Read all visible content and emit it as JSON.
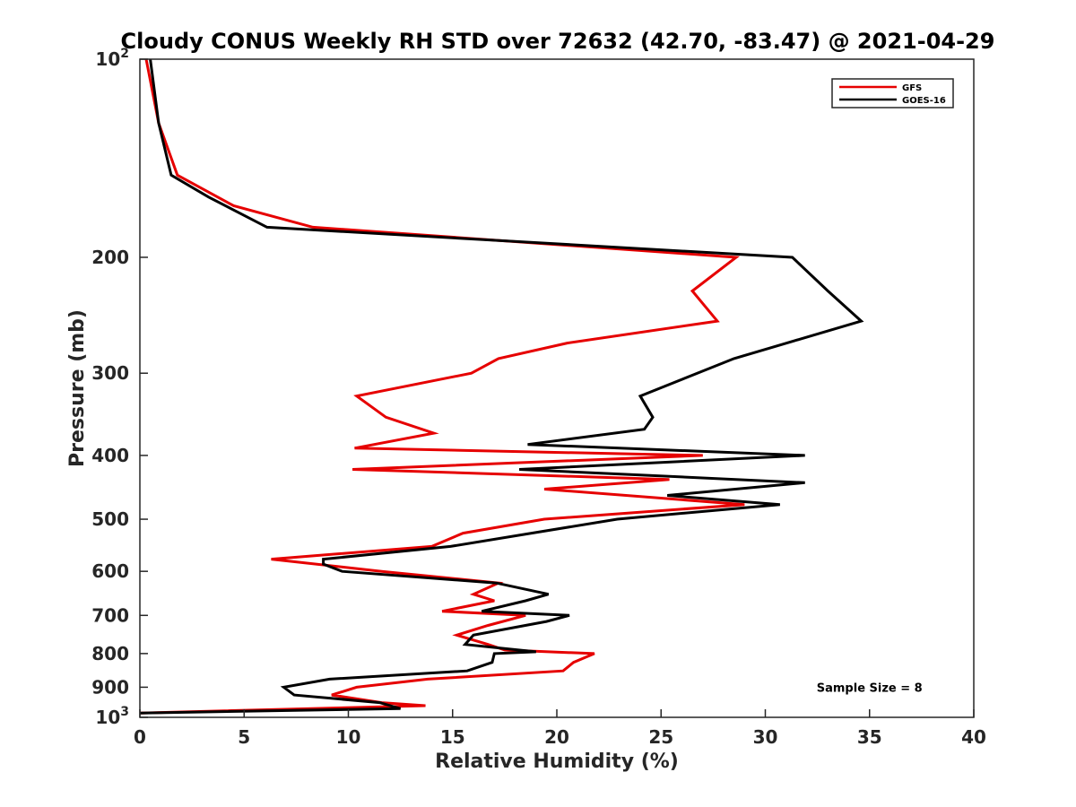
{
  "chart_data": {
    "type": "line",
    "title": "Cloudy CONUS Weekly RH STD over 72632 (42.70, -83.47) @ 2021-04-29",
    "xlabel": "Relative Humidity (%)",
    "ylabel": "Pressure (mb)",
    "xlim": [
      0,
      40
    ],
    "ylim": [
      100,
      1000
    ],
    "y_scale": "log",
    "y_reversed": true,
    "x_ticks": [
      "0",
      "5",
      "10",
      "15",
      "20",
      "25",
      "30",
      "35",
      "40"
    ],
    "y_ticks": [
      {
        "value": 100,
        "label": "10",
        "sup": "2"
      },
      {
        "value": 200,
        "label": "200"
      },
      {
        "value": 300,
        "label": "300"
      },
      {
        "value": 400,
        "label": "400"
      },
      {
        "value": 500,
        "label": "500"
      },
      {
        "value": 600,
        "label": "600"
      },
      {
        "value": 700,
        "label": "700"
      },
      {
        "value": 800,
        "label": "800"
      },
      {
        "value": 900,
        "label": "900"
      },
      {
        "value": 1000,
        "label": "10",
        "sup": "3"
      }
    ],
    "legend_position": "top-right",
    "annotation": "Sample Size = 8",
    "series": [
      {
        "name": "GFS",
        "color": "#e60000",
        "points": [
          [
            0.3,
            100
          ],
          [
            0.9,
            125
          ],
          [
            1.8,
            150
          ],
          [
            4.5,
            167
          ],
          [
            8.3,
            180
          ],
          [
            28.6,
            200
          ],
          [
            26.5,
            225
          ],
          [
            27.7,
            250
          ],
          [
            20.5,
            270
          ],
          [
            17.2,
            285
          ],
          [
            15.9,
            300
          ],
          [
            10.4,
            325
          ],
          [
            11.8,
            350
          ],
          [
            14.1,
            370
          ],
          [
            10.3,
            390
          ],
          [
            27.0,
            400
          ],
          [
            10.2,
            420
          ],
          [
            25.4,
            435
          ],
          [
            19.4,
            450
          ],
          [
            29.0,
            475
          ],
          [
            19.4,
            500
          ],
          [
            15.5,
            525
          ],
          [
            14.0,
            550
          ],
          [
            6.3,
            575
          ],
          [
            11.6,
            600
          ],
          [
            17.2,
            625
          ],
          [
            16.0,
            650
          ],
          [
            17.0,
            665
          ],
          [
            14.5,
            690
          ],
          [
            18.5,
            700
          ],
          [
            16.7,
            725
          ],
          [
            15.2,
            750
          ],
          [
            16.7,
            775
          ],
          [
            17.5,
            790
          ],
          [
            21.8,
            800
          ],
          [
            20.8,
            825
          ],
          [
            20.3,
            850
          ],
          [
            13.8,
            875
          ],
          [
            10.4,
            900
          ],
          [
            9.2,
            925
          ],
          [
            11.6,
            950
          ],
          [
            13.7,
            960
          ],
          [
            0.0,
            985
          ]
        ]
      },
      {
        "name": "GOES-16",
        "color": "#000000",
        "points": [
          [
            0.5,
            100
          ],
          [
            0.9,
            125
          ],
          [
            1.5,
            150
          ],
          [
            3.3,
            162
          ],
          [
            6.1,
            180
          ],
          [
            31.3,
            200
          ],
          [
            33.0,
            225
          ],
          [
            34.6,
            250
          ],
          [
            28.5,
            285
          ],
          [
            24.0,
            325
          ],
          [
            24.6,
            350
          ],
          [
            24.2,
            365
          ],
          [
            18.6,
            385
          ],
          [
            31.9,
            400
          ],
          [
            18.2,
            420
          ],
          [
            31.9,
            440
          ],
          [
            25.3,
            460
          ],
          [
            30.7,
            475
          ],
          [
            22.9,
            500
          ],
          [
            14.9,
            550
          ],
          [
            8.8,
            575
          ],
          [
            8.8,
            585
          ],
          [
            9.7,
            600
          ],
          [
            17.1,
            625
          ],
          [
            19.6,
            650
          ],
          [
            18.5,
            665
          ],
          [
            16.4,
            690
          ],
          [
            20.6,
            700
          ],
          [
            19.5,
            715
          ],
          [
            16.0,
            750
          ],
          [
            15.6,
            775
          ],
          [
            19.0,
            795
          ],
          [
            17.0,
            800
          ],
          [
            16.9,
            825
          ],
          [
            15.7,
            850
          ],
          [
            9.1,
            875
          ],
          [
            6.9,
            900
          ],
          [
            7.4,
            925
          ],
          [
            11.5,
            950
          ],
          [
            12.5,
            970
          ],
          [
            0.0,
            985
          ]
        ]
      }
    ]
  }
}
